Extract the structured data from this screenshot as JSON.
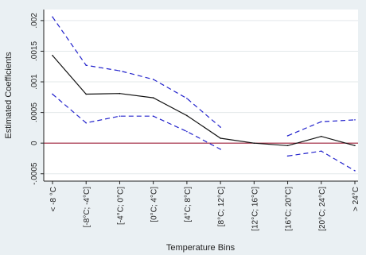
{
  "chart_data": {
    "type": "line",
    "title": "",
    "xlabel": "Temperature Bins",
    "ylabel": "Estimated Coefficients",
    "categories": [
      "< -8 °C",
      "[-8°C; -4°C]",
      "[-4°C; 0°C]",
      "[0°C; 4°C]",
      "[4°C; 8°C]",
      "[8°C; 12°C]",
      "[12°C; 16°C]",
      "[16°C; 20°C]",
      "[20°C; 24°C]",
      "> 24°C"
    ],
    "series": [
      {
        "role": "estimate",
        "style": "solid",
        "color": "#111111",
        "values": [
          0.00143,
          0.0008,
          0.00081,
          0.00074,
          0.00045,
          8e-05,
          0.0,
          -4e-05,
          0.00011,
          -4e-05
        ]
      },
      {
        "role": "upper-bound",
        "style": "dashed",
        "color": "#2222cc",
        "values": [
          0.00206,
          0.00127,
          0.00118,
          0.00104,
          0.00073,
          0.00026,
          null,
          0.00012,
          0.00035,
          0.00038
        ]
      },
      {
        "role": "lower-bound",
        "style": "dashed",
        "color": "#2222cc",
        "values": [
          0.0008,
          0.00033,
          0.00044,
          0.00044,
          0.00019,
          -0.0001,
          null,
          -0.00021,
          -0.00013,
          -0.00045
        ]
      }
    ],
    "yticks": [
      -0.0005,
      0,
      0.0005,
      0.001,
      0.0015,
      0.002
    ],
    "ytick_labels": [
      "-.0005",
      "0",
      ".0005",
      ".001",
      ".0015",
      ".002"
    ],
    "ylim": [
      -0.00062,
      0.00218
    ],
    "reference_line": {
      "y": 0,
      "color": "#a0203a"
    },
    "grid": true,
    "plot_background": "#ffffff",
    "outer_background": "#eaf0f3"
  }
}
